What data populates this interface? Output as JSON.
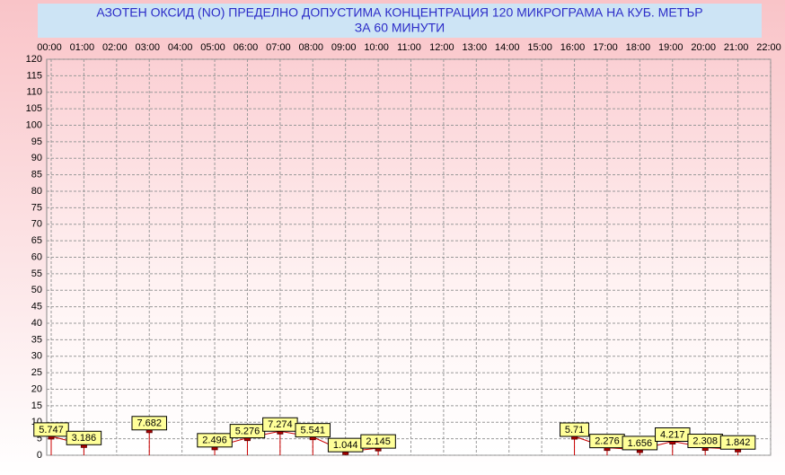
{
  "chart_data": {
    "type": "line",
    "title": "АЗОТЕН ОКСИД   (NO)     ПРЕДЕЛНО ДОПУСТИМА КОНЦЕНТРАЦИЯ 120 МИКРОГРАМА  НА КУБ. МЕТЪР",
    "subtitle": "ЗА 60 МИНУТИ",
    "categories": [
      "00:00",
      "01:00",
      "02:00",
      "03:00",
      "04:00",
      "05:00",
      "06:00",
      "07:00",
      "08:00",
      "09:00",
      "10:00",
      "11:00",
      "12:00",
      "13:00",
      "14:00",
      "15:00",
      "16:00",
      "17:00",
      "18:00",
      "19:00",
      "20:00",
      "21:00",
      "22:00"
    ],
    "values": [
      5.747,
      3.186,
      null,
      7.682,
      null,
      2.496,
      5.276,
      7.274,
      5.541,
      1.044,
      2.145,
      null,
      null,
      null,
      null,
      null,
      5.71,
      2.276,
      1.656,
      4.217,
      2.308,
      1.842,
      null
    ],
    "color": "#cc0000",
    "ylim": [
      0,
      120
    ],
    "yticks": [
      0,
      5,
      10,
      15,
      20,
      25,
      30,
      35,
      40,
      45,
      50,
      55,
      60,
      65,
      70,
      75,
      80,
      85,
      90,
      95,
      100,
      105,
      110,
      115,
      120
    ],
    "grid": true
  }
}
